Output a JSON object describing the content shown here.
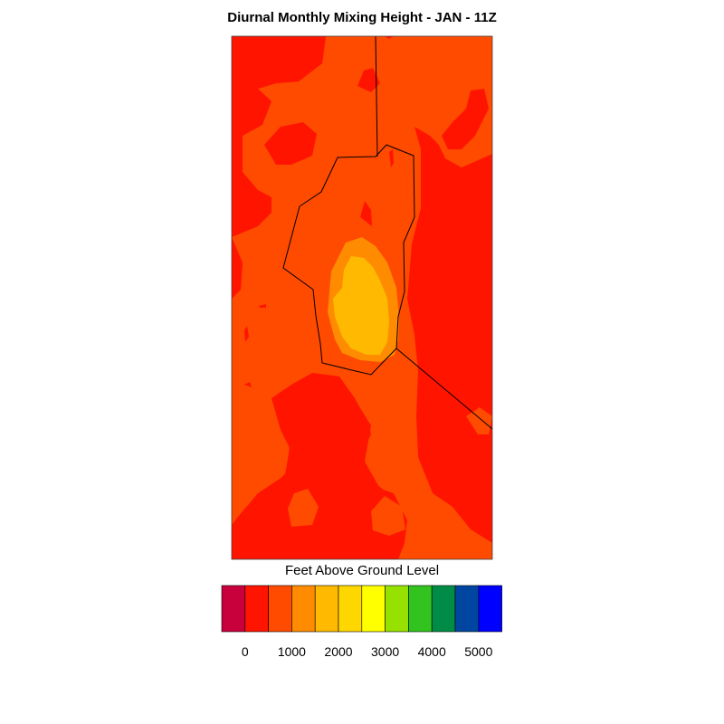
{
  "title": "Diurnal Monthly Mixing Height - JAN - 11Z",
  "colorbar": {
    "label": "Feet Above Ground Level",
    "colors": [
      "#c8003c",
      "#ff1400",
      "#ff4b00",
      "#ff8c00",
      "#ffb900",
      "#ffd700",
      "#ffff00",
      "#96e100",
      "#32c31e",
      "#008c46",
      "#0046a0",
      "#0000ff"
    ],
    "ticks": [
      "0",
      "1000",
      "2000",
      "3000",
      "4000",
      "5000"
    ]
  },
  "map_colors": {
    "red": "#ff1400",
    "orange": "#ff4b00",
    "light_orange": "#ff8c00",
    "yellow": "#ffb900",
    "crimson": "#e6002d"
  }
}
